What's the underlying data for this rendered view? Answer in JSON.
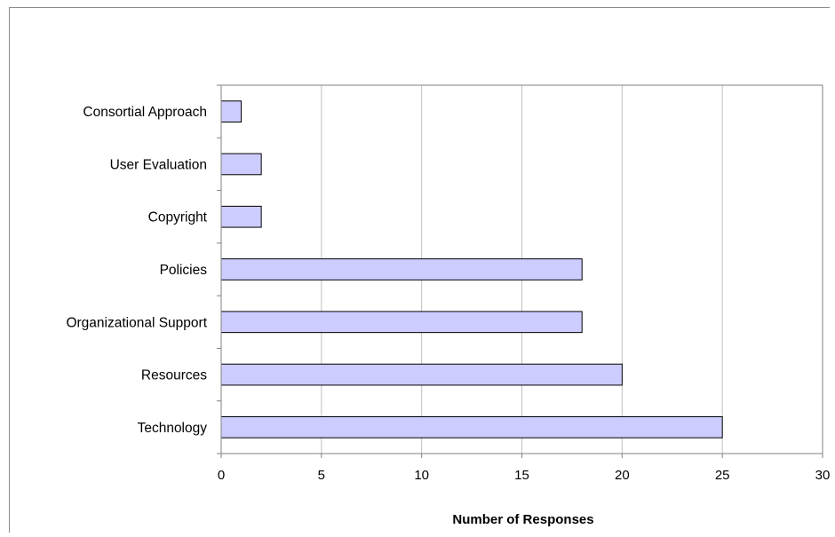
{
  "chart_data": {
    "type": "bar",
    "orientation": "horizontal",
    "title": "",
    "xlabel": "Number of Responses",
    "ylabel": "",
    "categories": [
      "Consortial Approach",
      "User Evaluation",
      "Copyright",
      "Policies",
      "Organizational Support",
      "Resources",
      "Technology"
    ],
    "values": [
      1,
      2,
      2,
      18,
      18,
      20,
      25
    ],
    "xlim": [
      0,
      30
    ],
    "xticks": [
      0,
      5,
      10,
      15,
      20,
      25,
      30
    ],
    "grid": "vertical",
    "legend": "none",
    "colors": {
      "bar_fill": "#ccccff",
      "bar_stroke": "#000000",
      "grid": "#c0c0c0",
      "axis": "#808080",
      "frame": "#8c8c8c"
    }
  }
}
